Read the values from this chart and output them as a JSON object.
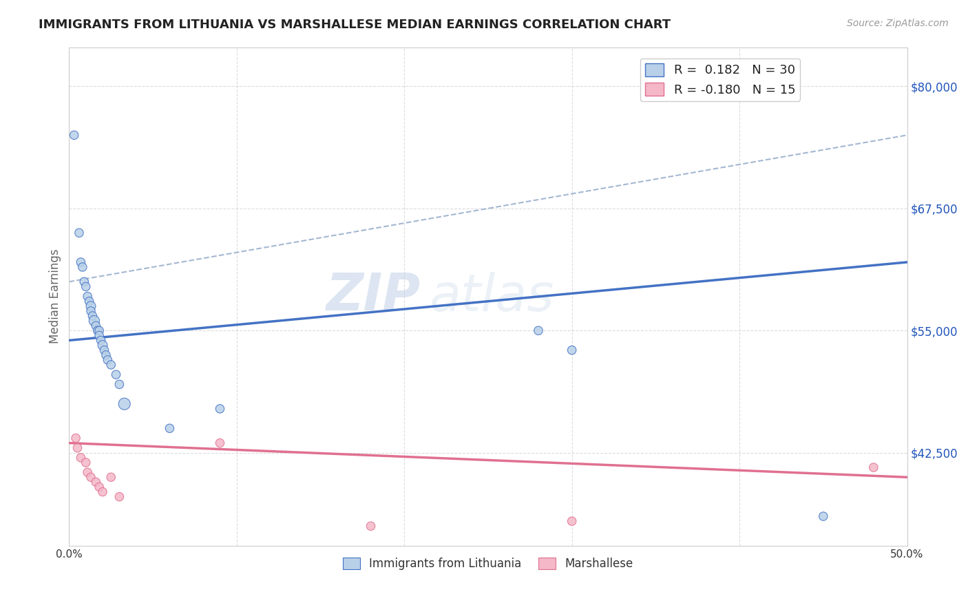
{
  "title": "IMMIGRANTS FROM LITHUANIA VS MARSHALLESE MEDIAN EARNINGS CORRELATION CHART",
  "source": "Source: ZipAtlas.com",
  "ylabel": "Median Earnings",
  "xlim": [
    0.0,
    0.5
  ],
  "ylim": [
    33000,
    84000
  ],
  "yticks": [
    42500,
    55000,
    67500,
    80000
  ],
  "ytick_labels": [
    "$42,500",
    "$55,000",
    "$67,500",
    "$80,000"
  ],
  "xticks": [
    0.0,
    0.1,
    0.2,
    0.3,
    0.4,
    0.5
  ],
  "xtick_labels": [
    "0.0%",
    "",
    "",
    "",
    "",
    "50.0%"
  ],
  "watermark_zip": "ZIP",
  "watermark_atlas": "atlas",
  "blue_color": "#b8d0e8",
  "blue_line_color": "#4472c4",
  "pink_color": "#f4b8c8",
  "pink_line_color": "#e07090",
  "dashed_line_color": "#9ab0cc",
  "blue_scatter_x": [
    0.003,
    0.006,
    0.007,
    0.008,
    0.009,
    0.01,
    0.011,
    0.012,
    0.013,
    0.013,
    0.014,
    0.015,
    0.016,
    0.017,
    0.018,
    0.018,
    0.019,
    0.02,
    0.021,
    0.022,
    0.023,
    0.025,
    0.028,
    0.03,
    0.033,
    0.06,
    0.09,
    0.28,
    0.3,
    0.45
  ],
  "blue_scatter_y": [
    75000,
    65000,
    62000,
    61500,
    60000,
    59500,
    58500,
    58000,
    57500,
    57000,
    56500,
    56000,
    55500,
    55000,
    55000,
    54500,
    54000,
    53500,
    53000,
    52500,
    52000,
    51500,
    50500,
    49500,
    47500,
    45000,
    47000,
    55000,
    53000,
    36000
  ],
  "blue_scatter_size": [
    80,
    80,
    80,
    80,
    80,
    80,
    80,
    80,
    100,
    80,
    80,
    120,
    80,
    80,
    80,
    80,
    80,
    100,
    80,
    80,
    80,
    80,
    80,
    80,
    150,
    80,
    80,
    80,
    80,
    80
  ],
  "pink_scatter_x": [
    0.004,
    0.005,
    0.007,
    0.01,
    0.011,
    0.013,
    0.016,
    0.018,
    0.02,
    0.025,
    0.03,
    0.09,
    0.18,
    0.3,
    0.48
  ],
  "pink_scatter_y": [
    44000,
    43000,
    42000,
    41500,
    40500,
    40000,
    39500,
    39000,
    38500,
    40000,
    38000,
    43500,
    35000,
    35500,
    41000
  ],
  "pink_scatter_size": [
    80,
    80,
    80,
    80,
    80,
    80,
    80,
    80,
    80,
    80,
    80,
    80,
    80,
    80,
    80
  ],
  "blue_trend_x": [
    0.0,
    0.5
  ],
  "blue_trend_y": [
    54000,
    62000
  ],
  "pink_trend_x": [
    0.0,
    0.5
  ],
  "pink_trend_y": [
    43500,
    40000
  ],
  "dashed_trend_x": [
    0.0,
    0.5
  ],
  "dashed_trend_y": [
    60000,
    75000
  ],
  "background_color": "#ffffff",
  "title_color": "#222222",
  "title_fontsize": 13,
  "axis_label_color": "#666666",
  "tick_label_color_y": "#2255bb",
  "tick_label_color_x": "#333333",
  "grid_color": "#cccccc",
  "legend1_blue_text": "R =  0.182   N = 30",
  "legend1_pink_text": "R = -0.180   N = 15"
}
